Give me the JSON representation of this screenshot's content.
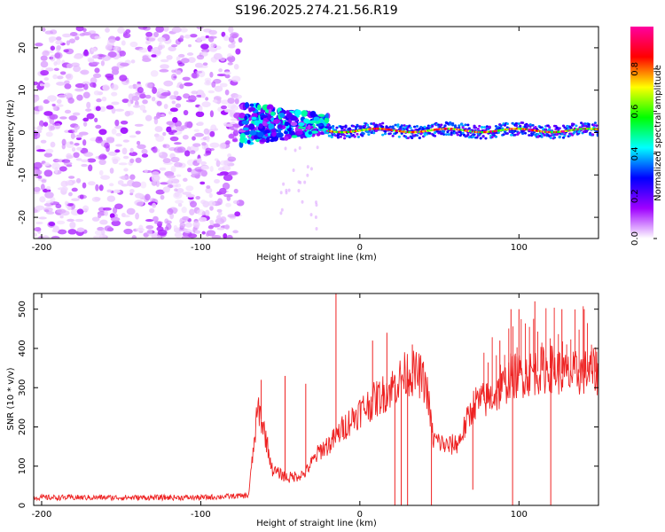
{
  "title": "S196.2025.274.21.56.R19",
  "chart_data": [
    {
      "type": "heatmap",
      "name": "spectrogram",
      "xlabel": "Height of straight line (km)",
      "ylabel": "Frequency (Hz)",
      "xlim": [
        -205,
        150
      ],
      "ylim": [
        -25,
        25
      ],
      "xticks": [
        -200,
        -100,
        0,
        100
      ],
      "yticks": [
        -20,
        -10,
        0,
        10,
        20
      ],
      "colorbar": {
        "label": "Normalized spectral amplitude",
        "range": [
          0.0,
          1.0
        ],
        "ticks": [
          0.0,
          0.2,
          0.4,
          0.6,
          0.8
        ],
        "tick_labels": [
          "0.0",
          "0.2",
          "0.4",
          "0.6",
          "0.8"
        ],
        "colors": [
          "#ffffff",
          "#9f00ff",
          "#0000ff",
          "#00ffff",
          "#00ff00",
          "#ffff00",
          "#ff0000",
          "#ff00a0"
        ]
      },
      "regions": [
        {
          "description": "scattered noise blobs",
          "x_range": [
            -205,
            -75
          ],
          "y_range": [
            -25,
            25
          ],
          "amplitude_range": [
            0.02,
            0.15
          ]
        },
        {
          "description": "transition band",
          "x_range": [
            -75,
            -20
          ],
          "y_center": 2,
          "y_halfwidth": 5,
          "amplitude_range": [
            0.1,
            0.5
          ]
        },
        {
          "description": "narrow signal line",
          "x_range": [
            -20,
            150
          ],
          "y_center": 0.5,
          "y_halfwidth": 1.5,
          "amplitude_range": [
            0.5,
            1.0
          ]
        }
      ]
    },
    {
      "type": "line",
      "name": "snr",
      "xlabel": "Height of straight line (km)",
      "ylabel": "SNR (10 * v/v)",
      "xlim": [
        -205,
        150
      ],
      "ylim": [
        0,
        540
      ],
      "xticks": [
        -200,
        -100,
        0,
        100
      ],
      "yticks": [
        0,
        100,
        200,
        300,
        400,
        500
      ],
      "color": "#ee2222",
      "series": [
        {
          "name": "SNR",
          "x": [
            -205,
            -150,
            -100,
            -70,
            -64,
            -60,
            -55,
            -45,
            -35,
            -25,
            -18,
            -10,
            0,
            10,
            20,
            30,
            38,
            42,
            46,
            55,
            62,
            66,
            72,
            80,
            88,
            95,
            100,
            110,
            120,
            130,
            140,
            150
          ],
          "y": [
            20,
            20,
            20,
            25,
            250,
            190,
            90,
            70,
            80,
            140,
            160,
            200,
            240,
            270,
            300,
            340,
            330,
            300,
            170,
            150,
            160,
            200,
            260,
            270,
            290,
            330,
            330,
            340,
            350,
            330,
            340,
            340
          ]
        }
      ],
      "spikes": [
        {
          "x": -62,
          "y": 320
        },
        {
          "x": -47,
          "y": 330
        },
        {
          "x": -34,
          "y": 310
        },
        {
          "x": -15,
          "y": 540
        },
        {
          "x": 8,
          "y": 420
        },
        {
          "x": 17,
          "y": 440
        },
        {
          "x": 33,
          "y": 410
        },
        {
          "x": 88,
          "y": 420
        },
        {
          "x": 95,
          "y": 500
        },
        {
          "x": 100,
          "y": 500
        },
        {
          "x": 110,
          "y": 520
        },
        {
          "x": 127,
          "y": 500
        },
        {
          "x": 141,
          "y": 500
        },
        {
          "x": 150,
          "y": 510
        }
      ],
      "dropouts": [
        {
          "x": 22,
          "y": 0
        },
        {
          "x": 26,
          "y": 0
        },
        {
          "x": 30,
          "y": 0
        },
        {
          "x": 45,
          "y": 0
        },
        {
          "x": 71,
          "y": 40
        },
        {
          "x": 96,
          "y": 0
        },
        {
          "x": 120,
          "y": 0
        }
      ]
    }
  ]
}
